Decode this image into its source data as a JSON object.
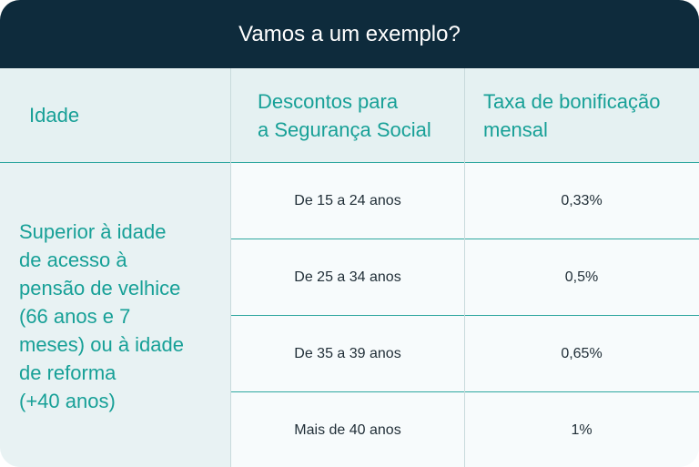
{
  "title": "Vamos a um exemplo?",
  "headers": {
    "age": "Idade",
    "discounts_line1": "Descontos para",
    "discounts_line2": "a Segurança Social",
    "rate_line1": "Taxa de bonificação",
    "rate_line2": "mensal"
  },
  "age_condition": {
    "lines": [
      "Superior à idade",
      "de acesso à",
      "pensão de velhice",
      "(66 anos e 7",
      "meses) ou à idade",
      "de reforma",
      "(+40 anos)"
    ]
  },
  "rows": [
    {
      "discounts": "De 15 a 24 anos",
      "rate": "0,33%"
    },
    {
      "discounts": "De 25 a 34 anos",
      "rate": "0,5%"
    },
    {
      "discounts": "De 35 a 39 anos",
      "rate": "0,65%"
    },
    {
      "discounts": "Mais de 40 anos",
      "rate": "1%"
    }
  ],
  "colors": {
    "title_bg": "#0e2b3c",
    "accent": "#17a097",
    "header_bg": "#e5f1f2",
    "body_text": "#1f2d36"
  }
}
